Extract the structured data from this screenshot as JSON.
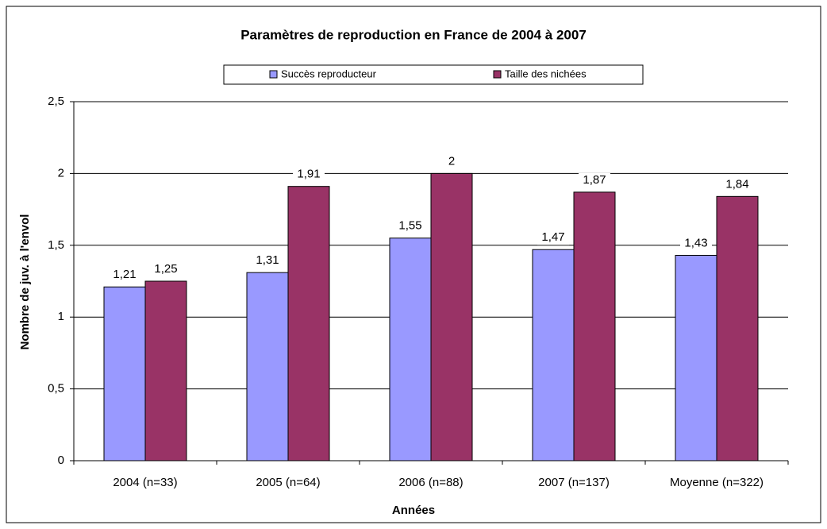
{
  "chart_data": {
    "type": "bar",
    "title": "Paramètres de reproduction en France de 2004 à 2007",
    "x_label": "Années",
    "y_label": "Nombre de juv. à l'envol",
    "categories": [
      "2004 (n=33)",
      "2005 (n=64)",
      "2006 (n=88)",
      "2007 (n=137)",
      "Moyenne (n=322)"
    ],
    "series": [
      {
        "name": "Succès reproducteur",
        "color": "#9999ff",
        "values": [
          1.21,
          1.31,
          1.55,
          1.47,
          1.43
        ],
        "value_labels": [
          "1,21",
          "1,31",
          "1,55",
          "1,47",
          "1,43"
        ]
      },
      {
        "name": "Taille des nichées",
        "color": "#993366",
        "values": [
          1.25,
          1.91,
          2,
          1.87,
          1.84
        ],
        "value_labels": [
          "1,25",
          "1,91",
          "2",
          "1,87",
          "1,84"
        ]
      }
    ],
    "ylim": [
      0,
      2.5
    ],
    "yticks": [
      0,
      {
        "value": 0.5,
        "label": "0,5"
      },
      1,
      {
        "value": 1.5,
        "label": "1,5"
      },
      2,
      {
        "value": 2.5,
        "label": "2,5"
      }
    ],
    "grid": true,
    "legend": "top"
  }
}
